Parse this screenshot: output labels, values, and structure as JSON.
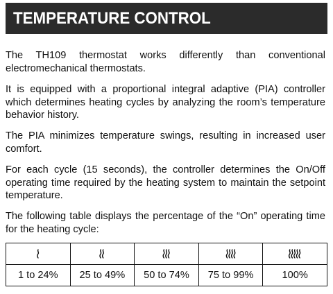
{
  "header": {
    "title": "TEMPERATURE CONTROL"
  },
  "paragraphs": [
    "The TH109 thermostat works differently than conventional electromechanical thermostats.",
    "It is equipped with a proportional integral adaptive (PIA) controller which determines heating cycles by analyzing the room’s temperature behavior history.",
    "The PIA minimizes temperature swings, resulting in increased user comfort.",
    "For each cycle (15 seconds), the controller determines the On/Off operating time required by the heating system to maintain the setpoint temperature.",
    "The following table displays the percentage of the “On” operating time for the heating cycle:"
  ],
  "table": {
    "columns": [
      {
        "icon": "heat-wave-icon-1",
        "waves": 1,
        "range": "1 to 24%"
      },
      {
        "icon": "heat-wave-icon-2",
        "waves": 2,
        "range": "25 to 49%"
      },
      {
        "icon": "heat-wave-icon-3",
        "waves": 3,
        "range": "50 to 74%"
      },
      {
        "icon": "heat-wave-icon-4",
        "waves": 4,
        "range": "75 to 99%"
      },
      {
        "icon": "heat-wave-icon-5",
        "waves": 5,
        "range": "100%"
      }
    ]
  },
  "colors": {
    "banner_bg": "#2b2b2b",
    "banner_text": "#ffffff",
    "text": "#111111"
  }
}
